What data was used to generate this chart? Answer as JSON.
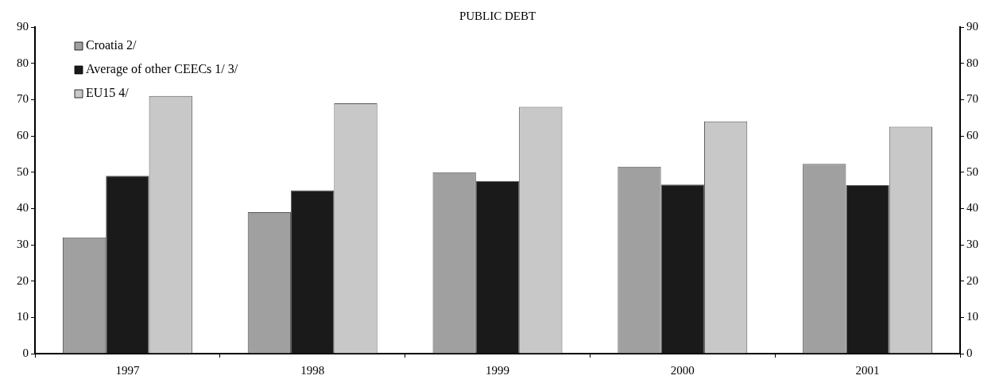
{
  "chart_data": {
    "type": "bar",
    "title": "PUBLIC DEBT",
    "categories": [
      "1997",
      "1998",
      "1999",
      "2000",
      "2001"
    ],
    "series": [
      {
        "name": "Croatia 2/",
        "color": "#a0a0a0",
        "values": [
          32,
          39,
          50,
          51.5,
          52.3
        ]
      },
      {
        "name": "Average of other CEECs 1/ 3/",
        "color": "#1a1a1a",
        "values": [
          49,
          45,
          47.5,
          46.6,
          46.4
        ]
      },
      {
        "name": "EU15 4/",
        "color": "#c8c8c8",
        "values": [
          71,
          69,
          68,
          64,
          62.5
        ]
      }
    ],
    "ylim": [
      0,
      90
    ],
    "yticks": [
      0,
      10,
      20,
      30,
      40,
      50,
      60,
      70,
      80,
      90
    ],
    "y2lim": [
      0,
      90
    ],
    "y2ticks": [
      0,
      10,
      20,
      30,
      40,
      50,
      60,
      70,
      80,
      90
    ],
    "grid": false,
    "legend": "top left"
  }
}
